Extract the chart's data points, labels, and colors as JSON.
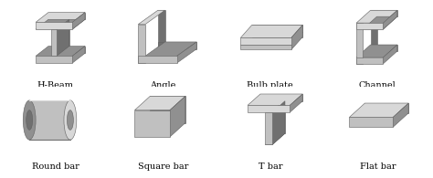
{
  "background_color": "#ffffff",
  "labels": [
    "H-Beam",
    "Angle",
    "Bulb plate",
    "Channel",
    "Round bar",
    "Square bar",
    "T bar",
    "Flat bar"
  ],
  "label_fontsize": 7,
  "fc": "#c0c0c0",
  "lt": "#d8d8d8",
  "dk": "#909090",
  "vdk": "#707070",
  "ec": "#606060",
  "lw": 0.4
}
